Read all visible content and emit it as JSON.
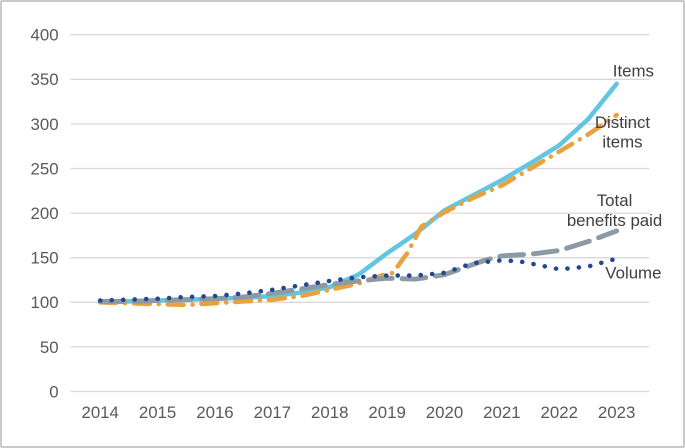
{
  "figure": {
    "background": "#ffffff",
    "border_color": "#c9c9c9"
  },
  "chart_data": {
    "type": "line",
    "title": "",
    "xlabel": "",
    "ylabel": "",
    "x_tick_labels": [
      "2014",
      "2015",
      "2016",
      "2017",
      "2018",
      "2019",
      "2020",
      "2021",
      "2022",
      "2023"
    ],
    "y_tick_labels": [
      "400",
      "350",
      "300",
      "250",
      "200",
      "150",
      "100",
      "50",
      "0"
    ],
    "y_tick_values": [
      400,
      350,
      300,
      250,
      200,
      150,
      100,
      50,
      0
    ],
    "ylim": [
      0,
      400
    ],
    "xlim": [
      2014,
      2023
    ],
    "grid": "horizontal",
    "grid_color": "#d9d9d9",
    "axis_text_color": "#595959",
    "legend_position": "direct-line-labels-right",
    "series": [
      {
        "name": "Items",
        "label_lines": [
          "Items"
        ],
        "color": "#62c6e2",
        "line_style": "solid",
        "points": [
          [
            2014,
            100
          ],
          [
            2014.5,
            101
          ],
          [
            2015,
            102
          ],
          [
            2015.5,
            103
          ],
          [
            2016,
            104
          ],
          [
            2016.5,
            105
          ],
          [
            2017,
            107
          ],
          [
            2017.5,
            111
          ],
          [
            2018,
            117
          ],
          [
            2018.5,
            131
          ],
          [
            2019,
            155
          ],
          [
            2019.5,
            177
          ],
          [
            2020,
            203
          ],
          [
            2020.5,
            220
          ],
          [
            2021,
            237
          ],
          [
            2021.5,
            256
          ],
          [
            2022,
            276
          ],
          [
            2022.5,
            305
          ],
          [
            2023,
            345
          ]
        ],
        "label_anchor": {
          "x": 636,
          "y": 75
        }
      },
      {
        "name": "Distinct items",
        "label_lines": [
          "Distinct",
          "items"
        ],
        "color": "#e9a23c",
        "line_style": "dash-dot",
        "points": [
          [
            2014,
            100
          ],
          [
            2014.5,
            99
          ],
          [
            2015,
            98
          ],
          [
            2015.5,
            97
          ],
          [
            2016,
            99
          ],
          [
            2016.5,
            101
          ],
          [
            2017,
            103
          ],
          [
            2017.5,
            107
          ],
          [
            2018,
            114
          ],
          [
            2018.5,
            121
          ],
          [
            2018.9,
            130
          ],
          [
            2019.1,
            133
          ],
          [
            2019.35,
            155
          ],
          [
            2019.6,
            185
          ],
          [
            2020,
            201
          ],
          [
            2020.5,
            217
          ],
          [
            2021,
            231
          ],
          [
            2021.5,
            250
          ],
          [
            2022,
            269
          ],
          [
            2022.5,
            288
          ],
          [
            2023,
            310
          ]
        ],
        "label_anchor": {
          "x": 625,
          "y": 127
        }
      },
      {
        "name": "Total benefits paid",
        "label_lines": [
          "Total",
          "benefits paid"
        ],
        "color": "#8c9aa5",
        "line_style": "dash",
        "points": [
          [
            2014,
            101
          ],
          [
            2014.5,
            101
          ],
          [
            2015,
            102
          ],
          [
            2015.5,
            103
          ],
          [
            2016,
            104
          ],
          [
            2016.5,
            106
          ],
          [
            2017,
            110
          ],
          [
            2017.5,
            115
          ],
          [
            2018,
            120
          ],
          [
            2018.5,
            124
          ],
          [
            2019,
            127
          ],
          [
            2019.5,
            126
          ],
          [
            2020,
            131
          ],
          [
            2020.3,
            138
          ],
          [
            2020.7,
            147
          ],
          [
            2021,
            152
          ],
          [
            2021.5,
            154
          ],
          [
            2022,
            158
          ],
          [
            2022.5,
            168
          ],
          [
            2023,
            180
          ]
        ],
        "label_anchor": {
          "x": 617,
          "y": 206
        }
      },
      {
        "name": "Volume",
        "label_lines": [
          "Volume"
        ],
        "color": "#24478f",
        "line_style": "dot",
        "points": [
          [
            2014,
            102
          ],
          [
            2014.5,
            103
          ],
          [
            2015,
            104
          ],
          [
            2015.5,
            106
          ],
          [
            2016,
            107
          ],
          [
            2016.5,
            110
          ],
          [
            2017,
            114
          ],
          [
            2017.5,
            119
          ],
          [
            2018,
            124
          ],
          [
            2018.5,
            128
          ],
          [
            2019,
            130
          ],
          [
            2019.5,
            130
          ],
          [
            2020,
            133
          ],
          [
            2020.5,
            144
          ],
          [
            2021,
            147
          ],
          [
            2021.3,
            146
          ],
          [
            2021.7,
            141
          ],
          [
            2022,
            137
          ],
          [
            2022.5,
            140
          ],
          [
            2023,
            149
          ]
        ],
        "label_anchor": {
          "x": 636,
          "y": 279
        }
      }
    ]
  }
}
